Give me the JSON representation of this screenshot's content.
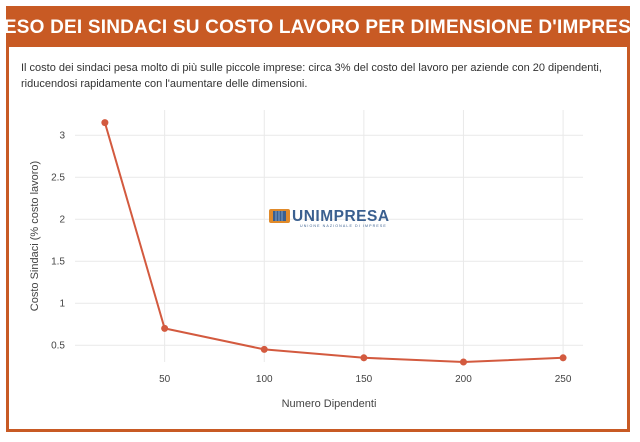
{
  "header": {
    "title": "PESO DEI SINDACI SU COSTO LAVORO PER DIMENSIONE D'IMPRESA",
    "description": "Il costo dei sindaci pesa molto di più sulle piccole imprese: circa 3% del costo del lavoro per aziende con 20 dipendenti, riducendosi rapidamente con l'aumentare delle dimensioni."
  },
  "watermark": {
    "brand": "UNIMPRESA",
    "tagline": "UNIONE NAZIONALE DI IMPRESE"
  },
  "colors": {
    "accent": "#c85a24",
    "line": "#d35a3f",
    "grid": "#e9e9e9"
  },
  "chart_data": {
    "type": "line",
    "title": "",
    "xlabel": "Numero Dipendenti",
    "ylabel": "Costo Sindaci (% costo lavoro)",
    "x": [
      20,
      50,
      100,
      150,
      200,
      250
    ],
    "series": [
      {
        "values": [
          3.15,
          0.7,
          0.45,
          0.35,
          0.3,
          0.35
        ]
      }
    ],
    "xlim": [
      5,
      260
    ],
    "ylim": [
      0.3,
      3.3
    ],
    "xticks": [
      50,
      100,
      150,
      200,
      250
    ],
    "yticks": [
      0.5,
      1,
      1.5,
      2,
      2.5,
      3
    ],
    "xtick_labels": [
      "50",
      "100",
      "150",
      "200",
      "250"
    ],
    "ytick_labels": [
      "0.5",
      "1",
      "1.5",
      "2",
      "2.5",
      "3"
    ],
    "grid": true,
    "legend": false
  }
}
